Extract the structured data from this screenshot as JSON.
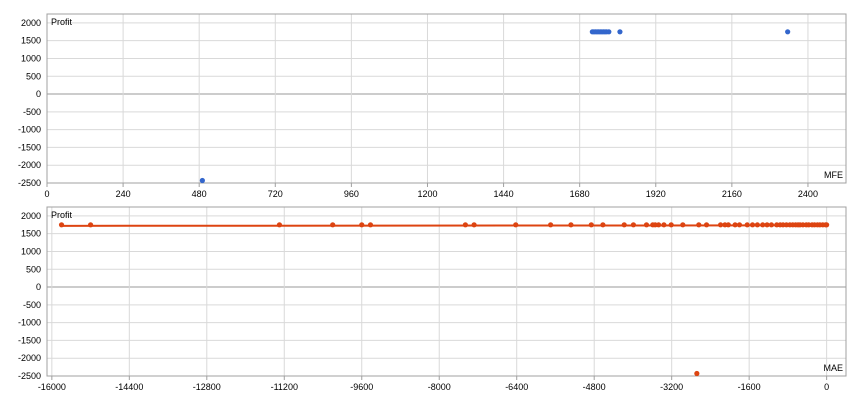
{
  "chart_data": [
    {
      "type": "scatter",
      "title": "",
      "ylabel": "Profit",
      "xlabel": "MFE",
      "xlim": [
        0,
        2520
      ],
      "ylim": [
        -2500,
        2250
      ],
      "xticks": [
        0,
        240,
        480,
        720,
        960,
        1200,
        1440,
        1680,
        1920,
        2160,
        2400
      ],
      "yticks": [
        -2500,
        -2000,
        -1500,
        -1000,
        -500,
        0,
        500,
        1000,
        1500,
        2000
      ],
      "grid": true,
      "trendline": false,
      "series": [
        {
          "color": "#3366cc",
          "points": [
            [
              490,
              -2430
            ],
            [
              1720,
              1750
            ],
            [
              1725,
              1750
            ],
            [
              1730,
              1750
            ],
            [
              1735,
              1750
            ],
            [
              1740,
              1750
            ],
            [
              1745,
              1750
            ],
            [
              1750,
              1750
            ],
            [
              1755,
              1750
            ],
            [
              1760,
              1750
            ],
            [
              1765,
              1750
            ],
            [
              1772,
              1750
            ],
            [
              1807,
              1750
            ],
            [
              2336,
              1750
            ]
          ]
        }
      ]
    },
    {
      "type": "scatter",
      "title": "",
      "ylabel": "Profit",
      "xlabel": "MAE",
      "xlim": [
        -16100,
        400
      ],
      "ylim": [
        -2500,
        2250
      ],
      "xticks": [
        -16000,
        -14400,
        -12800,
        -11200,
        -9600,
        -8000,
        -6400,
        -4800,
        -3200,
        -1600,
        0
      ],
      "yticks": [
        -2500,
        -2000,
        -1500,
        -1000,
        -500,
        0,
        500,
        1000,
        1500,
        2000
      ],
      "grid": true,
      "trendline": true,
      "trendline_points": [
        [
          -15800,
          1720
        ],
        [
          0,
          1735
        ]
      ],
      "series": [
        {
          "color": "#dd4411",
          "points": [
            [
              -15800,
              1750
            ],
            [
              -15200,
              1750
            ],
            [
              -11300,
              1750
            ],
            [
              -10200,
              1750
            ],
            [
              -9600,
              1750
            ],
            [
              -9420,
              1750
            ],
            [
              -7460,
              1750
            ],
            [
              -7280,
              1750
            ],
            [
              -6420,
              1750
            ],
            [
              -5700,
              1750
            ],
            [
              -5280,
              1750
            ],
            [
              -4860,
              1750
            ],
            [
              -4620,
              1750
            ],
            [
              -4180,
              1750
            ],
            [
              -3990,
              1750
            ],
            [
              -3720,
              1750
            ],
            [
              -3590,
              1750
            ],
            [
              -3540,
              1750
            ],
            [
              -3470,
              1750
            ],
            [
              -3360,
              1750
            ],
            [
              -3210,
              1750
            ],
            [
              -2970,
              1750
            ],
            [
              -2640,
              1750
            ],
            [
              -2480,
              1750
            ],
            [
              -2190,
              1750
            ],
            [
              -2100,
              1750
            ],
            [
              -2030,
              1750
            ],
            [
              -1890,
              1750
            ],
            [
              -1800,
              1750
            ],
            [
              -1640,
              1750
            ],
            [
              -1530,
              1750
            ],
            [
              -1430,
              1750
            ],
            [
              -1320,
              1750
            ],
            [
              -1230,
              1750
            ],
            [
              -1140,
              1750
            ],
            [
              -1030,
              1750
            ],
            [
              -960,
              1750
            ],
            [
              -900,
              1750
            ],
            [
              -830,
              1750
            ],
            [
              -760,
              1750
            ],
            [
              -700,
              1750
            ],
            [
              -640,
              1750
            ],
            [
              -590,
              1750
            ],
            [
              -550,
              1750
            ],
            [
              -490,
              1750
            ],
            [
              -420,
              1750
            ],
            [
              -370,
              1750
            ],
            [
              -300,
              1750
            ],
            [
              -250,
              1750
            ],
            [
              -190,
              1750
            ],
            [
              -140,
              1750
            ],
            [
              -80,
              1750
            ],
            [
              -20,
              1750
            ],
            [
              0,
              1750
            ],
            [
              -2680,
              -2430
            ]
          ]
        }
      ]
    }
  ],
  "colors": {
    "grid": "#d9d9d9",
    "frame": "#a0a0a0",
    "zero_line": "#999999",
    "trendline": "#dd4411"
  }
}
